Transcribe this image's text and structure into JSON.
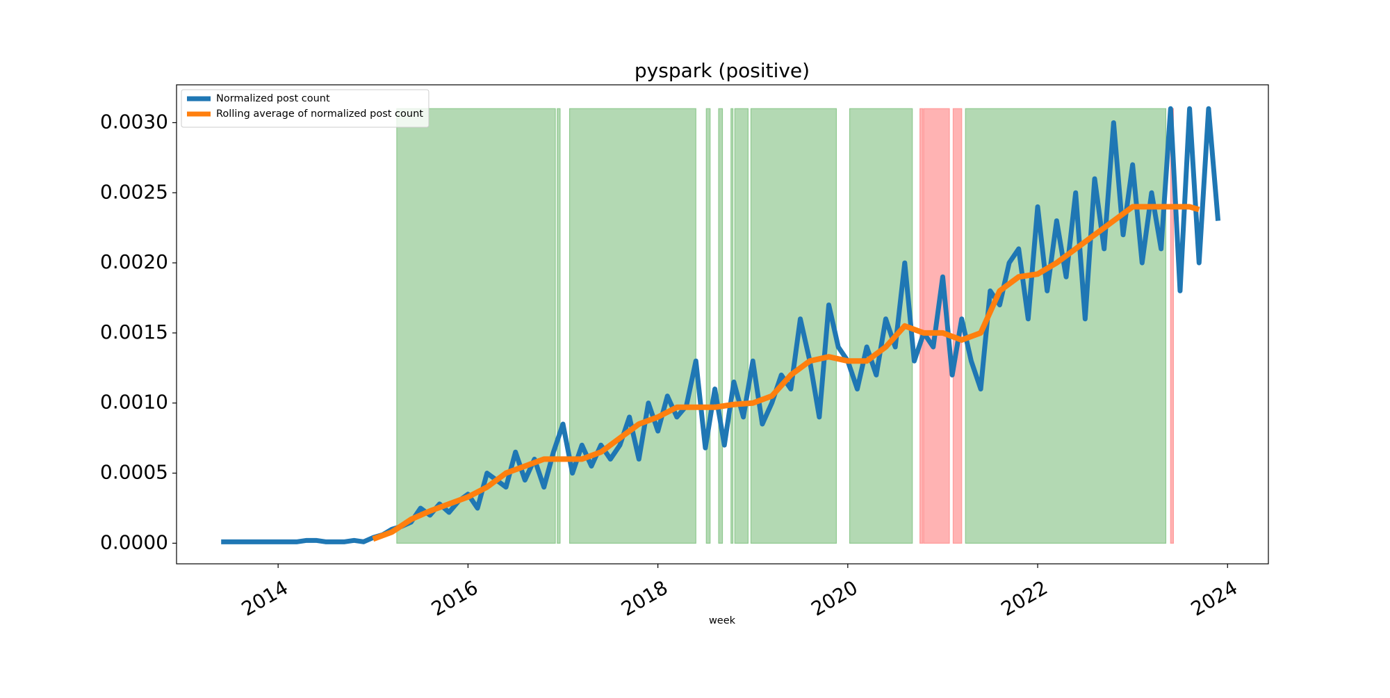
{
  "chart_data": {
    "type": "line",
    "title": "pyspark (positive)",
    "x_label": "week",
    "xlim": [
      2012.93,
      2024.43
    ],
    "xticks": [
      2014,
      2016,
      2018,
      2020,
      2022,
      2024
    ],
    "ylim": [
      -0.000147,
      0.00327
    ],
    "yticks": [
      {
        "value": 0,
        "label": "0.0000"
      },
      {
        "value": 0.0005,
        "label": "0.0005"
      },
      {
        "value": 0.001,
        "label": "0.0010"
      },
      {
        "value": 0.0015,
        "label": "0.0015"
      },
      {
        "value": 0.002,
        "label": "0.0020"
      },
      {
        "value": 0.0025,
        "label": "0.0025"
      },
      {
        "value": 0.003,
        "label": "0.0030"
      }
    ],
    "legend_position": "upper-left",
    "series": [
      {
        "name": "Normalized post count",
        "color": "#1f77b4",
        "x": [
          2013.4,
          2013.5,
          2013.6,
          2013.7,
          2013.8,
          2013.9,
          2014.0,
          2014.1,
          2014.2,
          2014.3,
          2014.4,
          2014.5,
          2014.6,
          2014.7,
          2014.8,
          2014.9,
          2015.0,
          2015.1,
          2015.2,
          2015.3,
          2015.4,
          2015.5,
          2015.6,
          2015.7,
          2015.8,
          2015.9,
          2016.0,
          2016.1,
          2016.2,
          2016.3,
          2016.4,
          2016.5,
          2016.6,
          2016.7,
          2016.8,
          2016.9,
          2017.0,
          2017.1,
          2017.2,
          2017.3,
          2017.4,
          2017.5,
          2017.6,
          2017.7,
          2017.8,
          2017.9,
          2018.0,
          2018.1,
          2018.2,
          2018.3,
          2018.4,
          2018.5,
          2018.6,
          2018.7,
          2018.8,
          2018.9,
          2019.0,
          2019.1,
          2019.2,
          2019.3,
          2019.4,
          2019.5,
          2019.6,
          2019.7,
          2019.8,
          2019.9,
          2020.0,
          2020.1,
          2020.2,
          2020.3,
          2020.4,
          2020.5,
          2020.6,
          2020.7,
          2020.8,
          2020.9,
          2021.0,
          2021.1,
          2021.2,
          2021.3,
          2021.4,
          2021.5,
          2021.6,
          2021.7,
          2021.8,
          2021.9,
          2022.0,
          2022.1,
          2022.2,
          2022.3,
          2022.4,
          2022.5,
          2022.6,
          2022.7,
          2022.8,
          2022.9,
          2023.0,
          2023.1,
          2023.2,
          2023.3,
          2023.4,
          2023.5,
          2023.6,
          2023.7,
          2023.8,
          2023.9
        ],
        "values": [
          1e-05,
          1e-05,
          1e-05,
          1e-05,
          1e-05,
          1e-05,
          1e-05,
          1e-05,
          1e-05,
          2e-05,
          2e-05,
          1e-05,
          1e-05,
          1e-05,
          2e-05,
          1e-05,
          4e-05,
          6e-05,
          0.0001,
          0.00012,
          0.00015,
          0.00025,
          0.0002,
          0.00028,
          0.00022,
          0.0003,
          0.00035,
          0.00025,
          0.0005,
          0.00045,
          0.0004,
          0.00065,
          0.00045,
          0.0006,
          0.0004,
          0.00065,
          0.00085,
          0.0005,
          0.0007,
          0.00055,
          0.0007,
          0.0006,
          0.0007,
          0.0009,
          0.0006,
          0.001,
          0.0008,
          0.00105,
          0.0009,
          0.00098,
          0.0013,
          0.00068,
          0.0011,
          0.0007,
          0.00115,
          0.0009,
          0.0013,
          0.00085,
          0.001,
          0.0012,
          0.0011,
          0.0016,
          0.0013,
          0.0009,
          0.0017,
          0.0014,
          0.0013,
          0.0011,
          0.0014,
          0.0012,
          0.0016,
          0.0014,
          0.002,
          0.0013,
          0.0015,
          0.0014,
          0.0019,
          0.0012,
          0.0016,
          0.0013,
          0.0011,
          0.0018,
          0.0017,
          0.002,
          0.0021,
          0.0016,
          0.0024,
          0.0018,
          0.0023,
          0.0019,
          0.0025,
          0.0016,
          0.0026,
          0.0021,
          0.003,
          0.0022,
          0.0027,
          0.002,
          0.0025,
          0.0021,
          0.0031,
          0.0018,
          0.0031,
          0.002,
          0.0031,
          0.0023
        ]
      },
      {
        "name": "Rolling average of normalized post count",
        "color": "#ff7f0e",
        "x": [
          2015.0,
          2015.2,
          2015.4,
          2015.6,
          2015.8,
          2016.0,
          2016.2,
          2016.4,
          2016.6,
          2016.8,
          2017.0,
          2017.2,
          2017.4,
          2017.6,
          2017.8,
          2018.0,
          2018.2,
          2018.4,
          2018.6,
          2018.8,
          2019.0,
          2019.2,
          2019.4,
          2019.6,
          2019.8,
          2020.0,
          2020.2,
          2020.4,
          2020.6,
          2020.8,
          2021.0,
          2021.2,
          2021.4,
          2021.6,
          2021.8,
          2022.0,
          2022.2,
          2022.4,
          2022.6,
          2022.8,
          2023.0,
          2023.2,
          2023.4,
          2023.6,
          2023.7
        ],
        "values": [
          3e-05,
          8e-05,
          0.00017,
          0.00023,
          0.00028,
          0.00033,
          0.0004,
          0.0005,
          0.00055,
          0.0006,
          0.0006,
          0.0006,
          0.00065,
          0.00075,
          0.00085,
          0.0009,
          0.00097,
          0.00097,
          0.00097,
          0.00099,
          0.001,
          0.00105,
          0.0012,
          0.0013,
          0.00133,
          0.0013,
          0.0013,
          0.0014,
          0.00155,
          0.0015,
          0.0015,
          0.00145,
          0.0015,
          0.0018,
          0.0019,
          0.00192,
          0.002,
          0.0021,
          0.0022,
          0.0023,
          0.0024,
          0.0024,
          0.0024,
          0.0024,
          0.00238
        ]
      }
    ],
    "span_ylim": [
      0,
      0.0031
    ],
    "shaded_regions": [
      {
        "start": 2015.25,
        "end": 2016.92,
        "color": "green"
      },
      {
        "start": 2016.94,
        "end": 2016.97,
        "color": "green"
      },
      {
        "start": 2017.07,
        "end": 2018.4,
        "color": "green"
      },
      {
        "start": 2018.51,
        "end": 2018.55,
        "color": "green"
      },
      {
        "start": 2018.64,
        "end": 2018.68,
        "color": "green"
      },
      {
        "start": 2018.77,
        "end": 2018.79,
        "color": "green"
      },
      {
        "start": 2018.81,
        "end": 2018.95,
        "color": "green"
      },
      {
        "start": 2018.98,
        "end": 2019.88,
        "color": "green"
      },
      {
        "start": 2020.02,
        "end": 2020.68,
        "color": "green"
      },
      {
        "start": 2021.24,
        "end": 2023.35,
        "color": "green"
      },
      {
        "start": 2020.76,
        "end": 2020.79,
        "color": "red"
      },
      {
        "start": 2020.8,
        "end": 2021.07,
        "color": "red"
      },
      {
        "start": 2021.11,
        "end": 2021.2,
        "color": "red"
      },
      {
        "start": 2023.4,
        "end": 2023.43,
        "color": "red"
      }
    ]
  }
}
